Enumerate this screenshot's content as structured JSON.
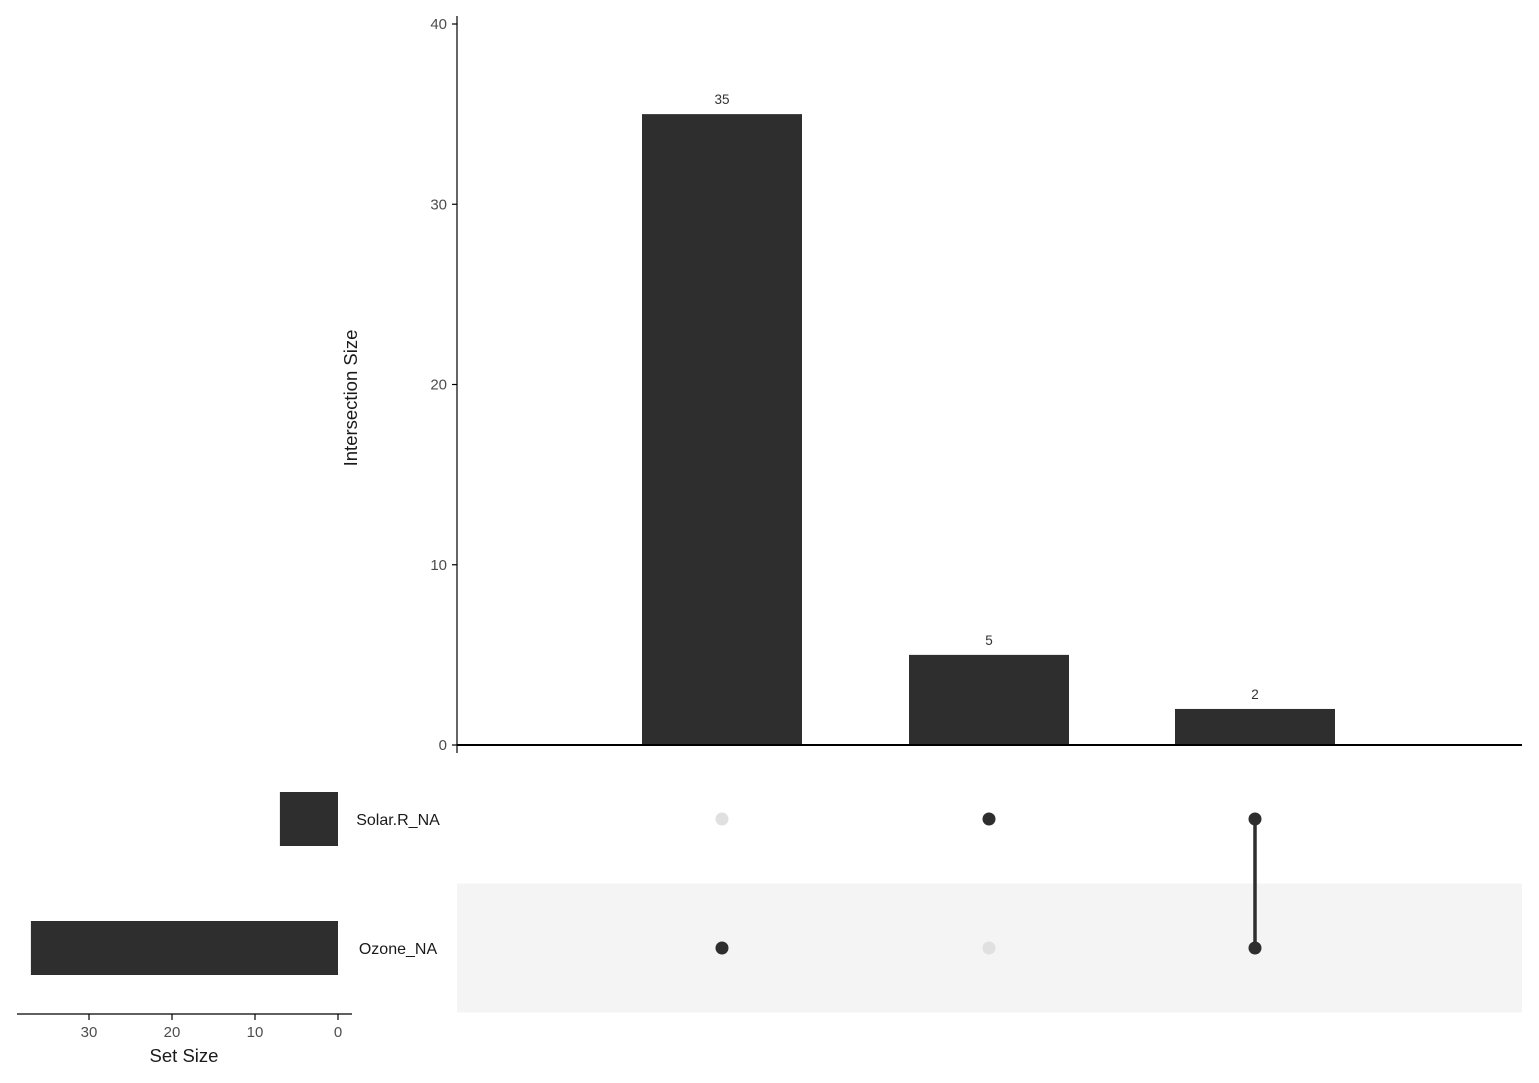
{
  "chart_data": {
    "type": "bar",
    "subtype": "upset",
    "sets": [
      "Solar.R_NA",
      "Ozone_NA"
    ],
    "intersection_size": {
      "ylabel": "Intersection Size",
      "ylim": [
        0,
        40
      ],
      "yticks": [
        0,
        10,
        20,
        30,
        40
      ],
      "bars": [
        {
          "members": [
            "Ozone_NA"
          ],
          "value": 35,
          "label": "35"
        },
        {
          "members": [
            "Solar.R_NA"
          ],
          "value": 5,
          "label": "5"
        },
        {
          "members": [
            "Solar.R_NA",
            "Ozone_NA"
          ],
          "value": 2,
          "label": "2"
        }
      ]
    },
    "set_size": {
      "xlabel": "Set Size",
      "xticks": [
        30,
        20,
        10,
        0
      ],
      "xlim": [
        0,
        39.5
      ],
      "reversed": true,
      "values": [
        {
          "set": "Solar.R_NA",
          "value": 7
        },
        {
          "set": "Ozone_NA",
          "value": 37
        }
      ]
    },
    "colors": {
      "bar": "#2e2e2e",
      "dot_active": "#2e2e2e",
      "dot_inactive": "#e0e0e0",
      "stripe": "#f4f4f4"
    }
  }
}
